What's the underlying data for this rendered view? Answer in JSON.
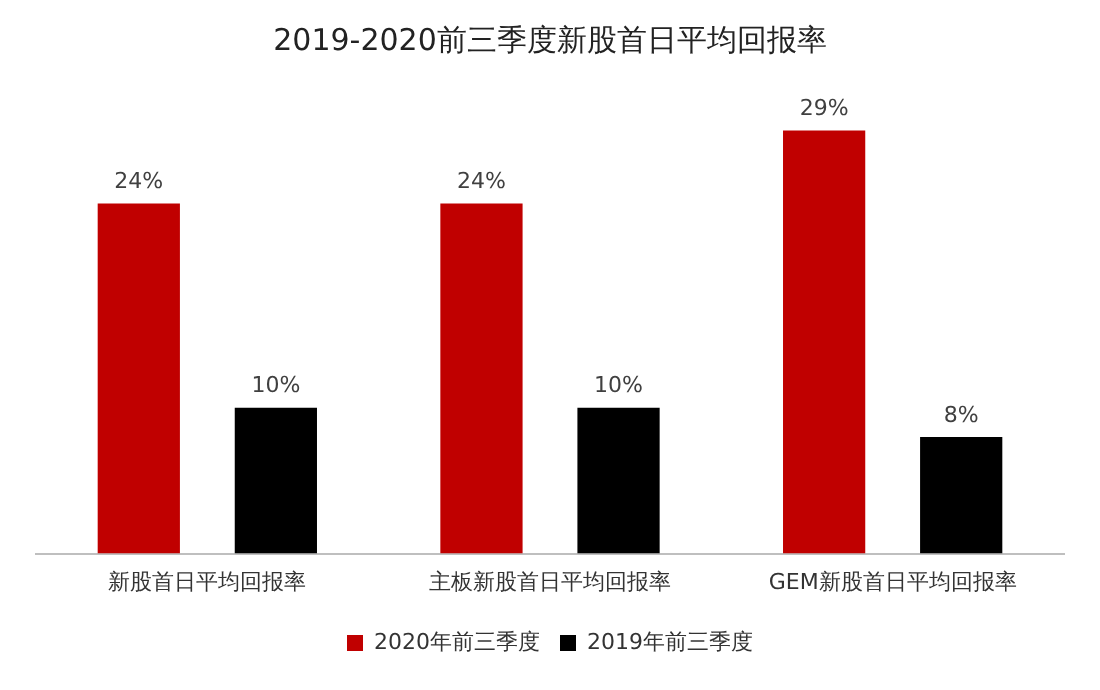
{
  "chart_data": {
    "type": "bar",
    "title": "2019-2020前三季度新股首日平均回报率",
    "categories": [
      "新股首日平均回报率",
      "主板新股首日平均回报率",
      "GEM新股首日平均回报率"
    ],
    "series": [
      {
        "name": "2020年前三季度",
        "color": "#c00000",
        "values": [
          24,
          24,
          29
        ],
        "value_labels": [
          "24%",
          "24%",
          "29%"
        ]
      },
      {
        "name": "2019年前三季度",
        "color": "#000000",
        "values": [
          10,
          10,
          8
        ],
        "value_labels": [
          "10%",
          "10%",
          "8%"
        ]
      }
    ],
    "legend": "bottom",
    "grid": false
  }
}
